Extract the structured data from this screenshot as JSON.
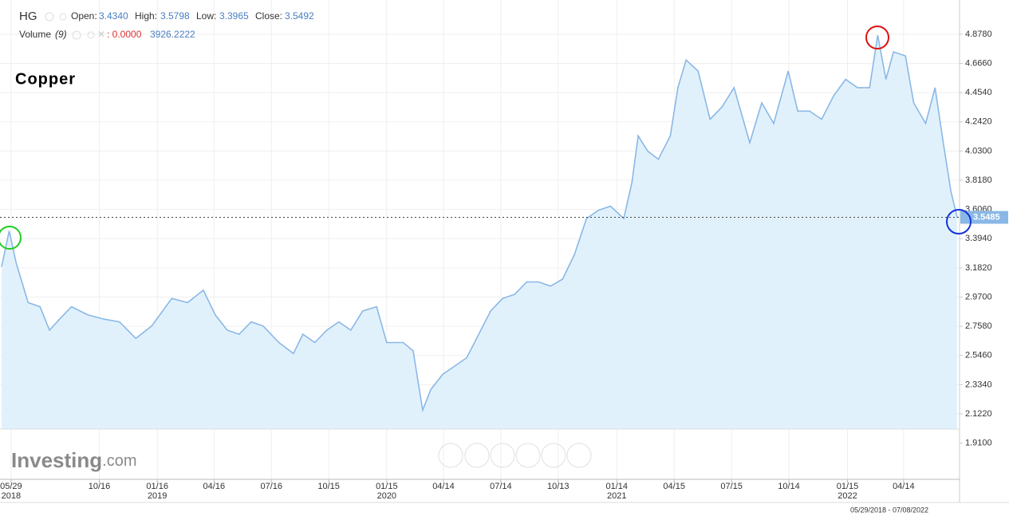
{
  "header": {
    "symbol": "HG",
    "open_label": "Open:",
    "open": "3.4340",
    "high_label": "High:",
    "high": "3.5798",
    "low_label": "Low:",
    "low": "3.3965",
    "close_label": "Close:",
    "close": "3.5492",
    "volume_label": "Volume",
    "volume_period": "(9)",
    "volume_value": ": 0.0000",
    "volume_avg": "3926.2222",
    "range": "05/29/2018 - 07/08/2022",
    "logo_main": "Investing",
    "logo_suffix": ".com"
  },
  "chart_data": {
    "type": "area",
    "title": "Copper",
    "color": "#8ab8e6",
    "fill": "#e1f1fc",
    "grid": true,
    "last": 3.5485,
    "x": [
      "2018-05-14",
      "2018-05-26",
      "2018-06-06",
      "2018-06-25",
      "2018-07-14",
      "2018-07-29",
      "2018-08-14",
      "2018-09-02",
      "2018-09-28",
      "2018-10-23",
      "2018-11-17",
      "2018-12-13",
      "2019-01-07",
      "2019-02-08",
      "2019-03-05",
      "2019-03-30",
      "2019-04-18",
      "2019-05-07",
      "2019-05-26",
      "2019-06-14",
      "2019-07-03",
      "2019-07-28",
      "2019-08-20",
      "2019-09-04",
      "2019-09-23",
      "2019-10-12",
      "2019-10-31",
      "2019-11-19",
      "2019-12-08",
      "2019-12-30",
      "2020-01-15",
      "2020-02-10",
      "2020-02-26",
      "2020-03-05",
      "2020-03-12",
      "2020-03-25",
      "2020-04-13",
      "2020-05-02",
      "2020-05-21",
      "2020-06-09",
      "2020-06-28",
      "2020-07-17",
      "2020-08-05",
      "2020-08-24",
      "2020-09-12",
      "2020-10-01",
      "2020-10-20",
      "2020-11-08",
      "2020-11-27",
      "2020-12-16",
      "2021-01-04",
      "2021-01-25",
      "2021-02-07",
      "2021-02-17",
      "2021-03-04",
      "2021-03-21",
      "2021-04-09",
      "2021-04-21",
      "2021-05-04",
      "2021-05-23",
      "2021-06-11",
      "2021-06-30",
      "2021-07-19",
      "2021-08-13",
      "2021-09-01",
      "2021-09-20",
      "2021-10-13",
      "2021-10-28",
      "2021-11-16",
      "2021-12-05",
      "2021-12-24",
      "2022-01-12",
      "2022-01-31",
      "2022-02-19",
      "2022-03-04",
      "2022-03-17",
      "2022-03-29",
      "2022-04-17",
      "2022-04-30",
      "2022-05-19",
      "2022-06-03",
      "2022-06-16",
      "2022-06-28",
      "2022-07-08"
    ],
    "values": [
      3.19,
      3.45,
      3.22,
      2.93,
      2.9,
      2.73,
      2.81,
      2.9,
      2.84,
      2.81,
      2.79,
      2.67,
      2.76,
      2.96,
      2.93,
      3.02,
      2.84,
      2.73,
      2.7,
      2.79,
      2.76,
      2.64,
      2.56,
      2.7,
      2.64,
      2.73,
      2.79,
      2.73,
      2.87,
      2.9,
      2.64,
      2.64,
      2.58,
      2.35,
      2.15,
      2.3,
      2.41,
      2.47,
      2.53,
      2.7,
      2.87,
      2.96,
      2.99,
      3.08,
      3.08,
      3.05,
      3.1,
      3.28,
      3.54,
      3.6,
      3.63,
      3.54,
      3.8,
      4.14,
      4.03,
      3.97,
      4.14,
      4.49,
      4.69,
      4.61,
      4.26,
      4.35,
      4.49,
      4.09,
      4.38,
      4.23,
      4.61,
      4.32,
      4.32,
      4.26,
      4.43,
      4.55,
      4.49,
      4.49,
      4.87,
      4.55,
      4.75,
      4.72,
      4.38,
      4.23,
      4.49,
      4.09,
      3.74,
      3.5485
    ],
    "xlim": [
      "2018-05-14",
      "2022-07-08"
    ],
    "xticks": [
      {
        "value": "2018-05-29",
        "label": "05/29",
        "year": "2018"
      },
      {
        "value": "2018-10-16",
        "label": "10/16"
      },
      {
        "value": "2019-01-16",
        "label": "01/16",
        "year": "2019"
      },
      {
        "value": "2019-04-16",
        "label": "04/16"
      },
      {
        "value": "2019-07-16",
        "label": "07/16"
      },
      {
        "value": "2019-10-15",
        "label": "10/15"
      },
      {
        "value": "2020-01-15",
        "label": "01/15",
        "year": "2020"
      },
      {
        "value": "2020-04-14",
        "label": "04/14"
      },
      {
        "value": "2020-07-14",
        "label": "07/14"
      },
      {
        "value": "2020-10-13",
        "label": "10/13"
      },
      {
        "value": "2021-01-14",
        "label": "01/14",
        "year": "2021"
      },
      {
        "value": "2021-04-15",
        "label": "04/15"
      },
      {
        "value": "2021-07-15",
        "label": "07/15"
      },
      {
        "value": "2021-10-14",
        "label": "10/14"
      },
      {
        "value": "2022-01-15",
        "label": "01/15",
        "year": "2022"
      },
      {
        "value": "2022-04-14",
        "label": "04/14"
      }
    ],
    "ylim": [
      2.012,
      5.126
    ],
    "yticks": [
      {
        "value": 4.878,
        "label": "4.8780"
      },
      {
        "value": 4.666,
        "label": "4.6660"
      },
      {
        "value": 4.454,
        "label": "4.4540"
      },
      {
        "value": 4.242,
        "label": "4.2420"
      },
      {
        "value": 4.03,
        "label": "4.0300"
      },
      {
        "value": 3.818,
        "label": "3.8180"
      },
      {
        "value": 3.606,
        "label": "3.6060"
      },
      {
        "value": 3.394,
        "label": "3.3940"
      },
      {
        "value": 3.182,
        "label": "3.1820"
      },
      {
        "value": 2.97,
        "label": "2.9700"
      },
      {
        "value": 2.758,
        "label": "2.7580"
      },
      {
        "value": 2.546,
        "label": "2.5460"
      },
      {
        "value": 2.334,
        "label": "2.3340"
      },
      {
        "value": 2.122,
        "label": "2.1220"
      },
      {
        "value": 1.91,
        "label": "1.9100"
      }
    ]
  }
}
